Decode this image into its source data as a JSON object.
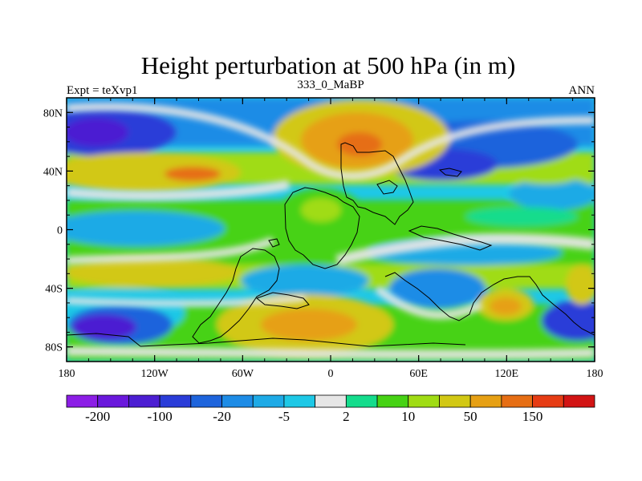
{
  "map": {
    "title": "Height perturbation at 500 hPa (in m)",
    "left_label": "Expt = teXvp1",
    "center_label": "333_0_MaBP",
    "right_label": "ANN",
    "x_ticks": [
      {
        "value": -180,
        "label": "180"
      },
      {
        "value": -120,
        "label": "120W"
      },
      {
        "value": -60,
        "label": "60W"
      },
      {
        "value": 0,
        "label": "0"
      },
      {
        "value": 60,
        "label": "60E"
      },
      {
        "value": 120,
        "label": "120E"
      },
      {
        "value": 180,
        "label": "180"
      }
    ],
    "y_ticks": [
      {
        "value": 80,
        "label": "80N"
      },
      {
        "value": 40,
        "label": "40N"
      },
      {
        "value": 0,
        "label": "0"
      },
      {
        "value": -40,
        "label": "40S"
      },
      {
        "value": -80,
        "label": "80S"
      }
    ]
  },
  "colorbar": {
    "colors": [
      "#8c1ee6",
      "#6a18dc",
      "#4c1ed2",
      "#2a3cd8",
      "#1e64dc",
      "#1e8ce6",
      "#1eaae6",
      "#1ec8e6",
      "#e6e6e6",
      "#14dc8c",
      "#46d214",
      "#a0dc14",
      "#d2c814",
      "#e6a014",
      "#e66e14",
      "#e63c14",
      "#d21414"
    ],
    "tick_labels": [
      {
        "after_box": 1,
        "label": "-200"
      },
      {
        "after_box": 3,
        "label": "-100"
      },
      {
        "after_box": 5,
        "label": "-20"
      },
      {
        "after_box": 7,
        "label": "-5"
      },
      {
        "after_box": 9,
        "label": "2"
      },
      {
        "after_box": 11,
        "label": "10"
      },
      {
        "after_box": 13,
        "label": "50"
      },
      {
        "after_box": 15,
        "label": "150"
      }
    ]
  }
}
